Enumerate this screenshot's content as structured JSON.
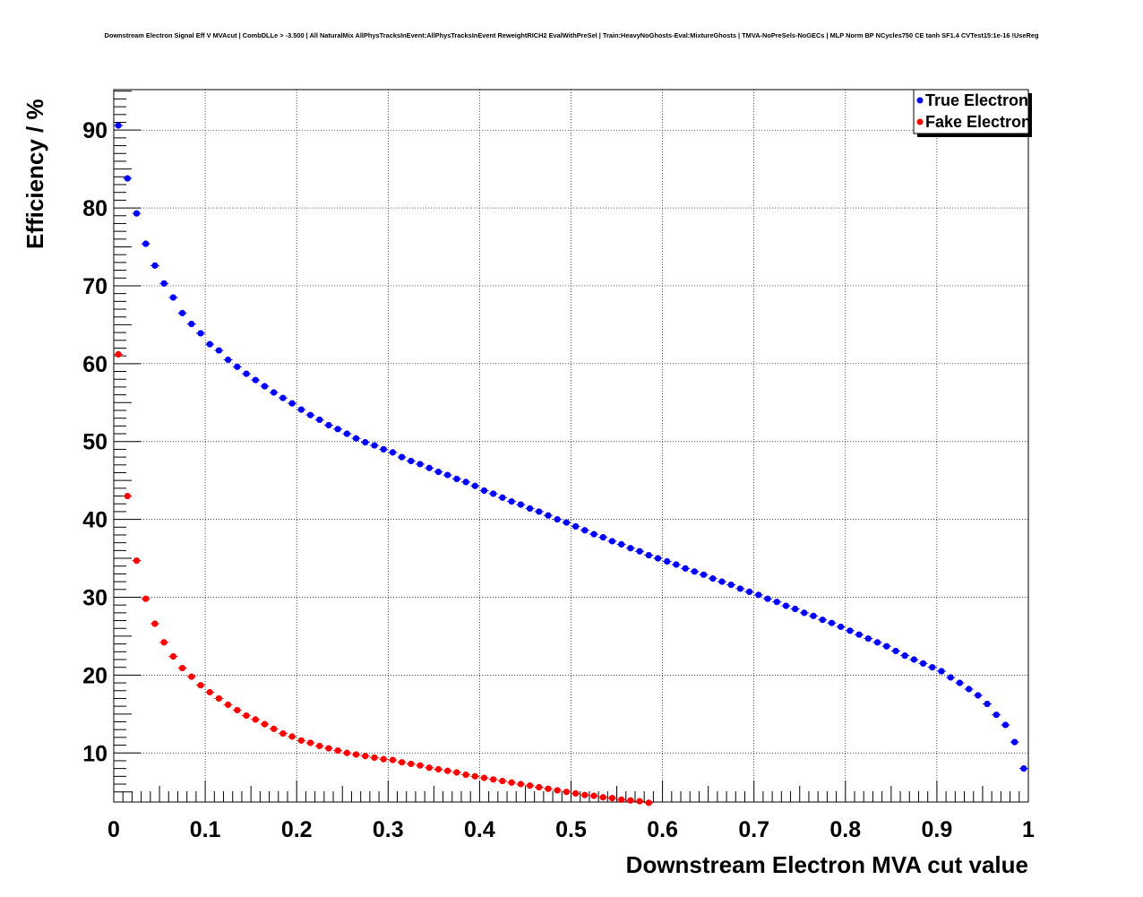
{
  "chart_data": {
    "type": "scatter",
    "title": "Downstream Electron Signal Eff V MVAcut | CombDLLe > -3.500 | All NaturalMix AllPhysTracksInEvent:AllPhysTracksInEvent ReweightRICH2 EvalWithPreSel | Train:HeavyNoGhosts-Eval:MixtureGhosts | TMVA-NoPreSels-NoGECs | MLP Norm BP NCycles750 CE tanh SF1.4 CVTest15:1e-16 !UseReg",
    "xlabel": "Downstream Electron MVA cut value",
    "ylabel": "Efficiency / %",
    "xlim": [
      0,
      1
    ],
    "ylim": [
      3.7,
      95.2
    ],
    "xticks": [
      0,
      0.1,
      0.2,
      0.3,
      0.4,
      0.5,
      0.6,
      0.7,
      0.8,
      0.9,
      1
    ],
    "xtick_labels": [
      "0",
      "0.1",
      "0.2",
      "0.3",
      "0.4",
      "0.5",
      "0.6",
      "0.7",
      "0.8",
      "0.9",
      "1"
    ],
    "yticks": [
      10,
      20,
      30,
      40,
      50,
      60,
      70,
      80,
      90
    ],
    "ytick_labels": [
      "10",
      "20",
      "30",
      "40",
      "50",
      "60",
      "70",
      "80",
      "90"
    ],
    "grid": true,
    "legend": "top-right",
    "x_start": 0.005,
    "x_step": 0.01,
    "series": [
      {
        "name": "True Electron",
        "color": "#0000ff",
        "values": [
          90.6,
          83.8,
          79.3,
          75.4,
          72.6,
          70.3,
          68.5,
          66.5,
          65.1,
          63.9,
          62.5,
          61.7,
          60.5,
          59.6,
          58.7,
          57.9,
          57.1,
          56.3,
          55.6,
          54.9,
          54.1,
          53.4,
          52.8,
          52.1,
          51.6,
          51.0,
          50.4,
          49.9,
          49.5,
          49.0,
          48.6,
          48.0,
          47.5,
          47.1,
          46.6,
          46.1,
          45.7,
          45.2,
          44.8,
          44.3,
          43.7,
          43.3,
          42.8,
          42.3,
          41.9,
          41.4,
          41.0,
          40.5,
          40.0,
          39.6,
          39.1,
          38.6,
          38.1,
          37.7,
          37.2,
          36.8,
          36.3,
          35.9,
          35.4,
          35.0,
          34.6,
          34.2,
          33.7,
          33.3,
          32.9,
          32.4,
          32.0,
          31.6,
          31.1,
          30.7,
          30.3,
          29.8,
          29.4,
          28.9,
          28.5,
          28.0,
          27.6,
          27.1,
          26.7,
          26.2,
          25.7,
          25.2,
          24.7,
          24.2,
          23.7,
          23.1,
          22.5,
          22.0,
          21.5,
          21.0,
          20.5,
          19.7,
          19.0,
          18.2,
          17.4,
          16.3,
          14.9,
          13.6,
          11.4,
          8.0
        ]
      },
      {
        "name": "Fake Electron",
        "color": "#ff0000",
        "values": [
          61.2,
          43.0,
          34.7,
          29.8,
          26.6,
          24.2,
          22.4,
          20.9,
          19.8,
          18.7,
          17.8,
          17.0,
          16.2,
          15.5,
          14.8,
          14.3,
          13.7,
          13.1,
          12.5,
          12.1,
          11.6,
          11.3,
          10.9,
          10.6,
          10.3,
          10.0,
          9.8,
          9.6,
          9.4,
          9.2,
          9.1,
          8.8,
          8.6,
          8.4,
          8.1,
          7.9,
          7.7,
          7.5,
          7.2,
          7.0,
          6.8,
          6.6,
          6.4,
          6.2,
          6.0,
          5.8,
          5.6,
          5.4,
          5.2,
          5.0,
          4.8,
          4.6,
          4.5,
          4.3,
          4.2,
          4.0,
          3.9,
          3.8,
          3.6
        ]
      }
    ]
  }
}
